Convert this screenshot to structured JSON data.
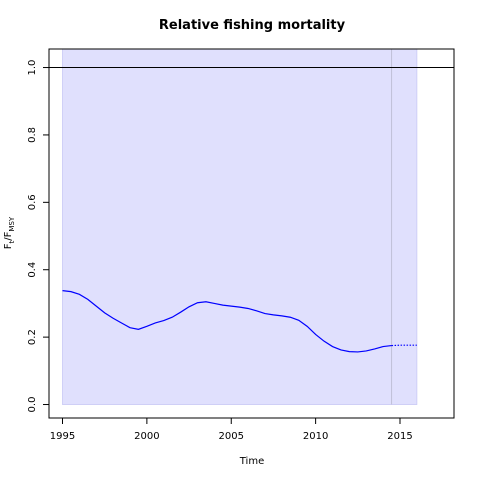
{
  "chart_data": {
    "type": "line",
    "title": "Relative fishing mortality",
    "xlabel": "Time",
    "ylabel": {
      "main": "F",
      "sub1": "t",
      "sep": "/F",
      "sub2": "MSY"
    },
    "xlim": [
      1994.2,
      2018.2
    ],
    "ylim": [
      -0.04,
      1.055
    ],
    "xticks": [
      "1995",
      "2000",
      "2005",
      "2010",
      "2015"
    ],
    "yticks": [
      "0.0",
      "0.2",
      "0.4",
      "0.6",
      "0.8",
      "1.0"
    ],
    "reference_line": 1.0,
    "ci_band": {
      "x_start": 1995.0,
      "x_end": 2016.0,
      "lower": 0.0,
      "upper": 1.055,
      "color": "#e0e0fd"
    },
    "forecast_marker_x": 2014.5,
    "series": [
      {
        "color": "#0000ff",
        "style": "solid",
        "x": [
          1995.0,
          1995.5,
          1996.0,
          1996.5,
          1997.0,
          1997.5,
          1998.0,
          1998.5,
          1999.0,
          1999.5,
          2000.0,
          2000.5,
          2001.0,
          2001.5,
          2002.0,
          2002.5,
          2003.0,
          2003.5,
          2004.0,
          2004.5,
          2005.0,
          2005.5,
          2006.0,
          2006.5,
          2007.0,
          2007.5,
          2008.0,
          2008.5,
          2009.0,
          2009.5,
          2010.0,
          2010.5,
          2011.0,
          2011.5,
          2012.0,
          2012.5,
          2013.0,
          2013.5,
          2014.0,
          2014.5
        ],
        "y": [
          0.338,
          0.335,
          0.327,
          0.312,
          0.292,
          0.272,
          0.256,
          0.242,
          0.228,
          0.223,
          0.232,
          0.242,
          0.249,
          0.259,
          0.274,
          0.29,
          0.302,
          0.305,
          0.3,
          0.295,
          0.292,
          0.289,
          0.285,
          0.278,
          0.27,
          0.266,
          0.263,
          0.259,
          0.25,
          0.232,
          0.208,
          0.188,
          0.172,
          0.162,
          0.157,
          0.156,
          0.159,
          0.165,
          0.172,
          0.175
        ]
      },
      {
        "color": "#0000ff",
        "style": "dotted",
        "x": [
          2014.5,
          2015.0,
          2015.5,
          2016.0
        ],
        "y": [
          0.175,
          0.176,
          0.176,
          0.176
        ]
      }
    ]
  }
}
